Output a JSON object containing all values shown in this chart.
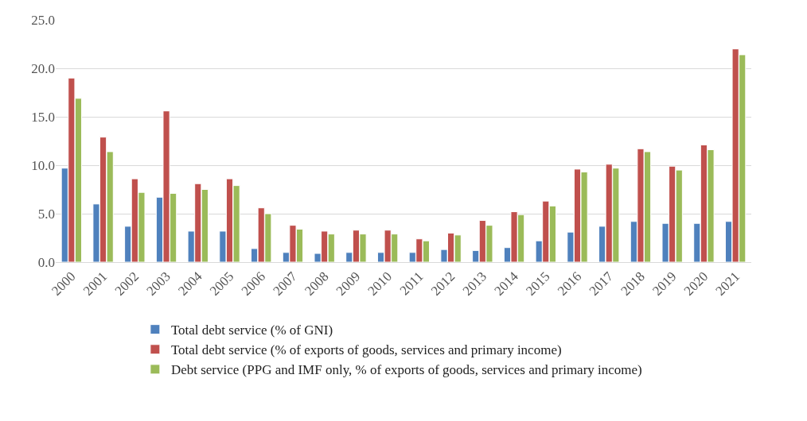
{
  "chart_data": {
    "type": "bar",
    "categories": [
      "2000",
      "2001",
      "2002",
      "2003",
      "2004",
      "2005",
      "2006",
      "2007",
      "2008",
      "2009",
      "2010",
      "2011",
      "2012",
      "2013",
      "2014",
      "2015",
      "2016",
      "2017",
      "2018",
      "2019",
      "2020",
      "2021"
    ],
    "series": [
      {
        "name": "Total debt service (% of GNI)",
        "color": "#4f81bd",
        "values": [
          9.7,
          6.0,
          3.7,
          6.7,
          3.2,
          3.2,
          1.4,
          1.0,
          0.9,
          1.0,
          1.0,
          1.0,
          1.3,
          1.2,
          1.5,
          2.2,
          3.1,
          3.7,
          4.2,
          4.0,
          4.0,
          4.2
        ]
      },
      {
        "name": "Total debt service (% of exports of goods, services and primary income)",
        "color": "#c0504d",
        "values": [
          19.0,
          12.9,
          8.6,
          15.6,
          8.1,
          8.6,
          5.6,
          3.8,
          3.2,
          3.3,
          3.3,
          2.4,
          3.0,
          4.3,
          5.2,
          6.3,
          9.6,
          10.1,
          11.7,
          9.9,
          12.1,
          22.0
        ]
      },
      {
        "name": "Debt service (PPG and IMF only, % of exports of goods, services and primary income)",
        "color": "#9bbb59",
        "values": [
          16.9,
          11.4,
          7.2,
          7.1,
          7.5,
          7.9,
          5.0,
          3.4,
          2.9,
          2.9,
          2.9,
          2.2,
          2.8,
          3.8,
          4.9,
          5.8,
          9.3,
          9.7,
          11.4,
          9.5,
          11.6,
          21.4
        ]
      }
    ],
    "ylim": [
      0,
      25
    ],
    "yticks": [
      {
        "value": 0,
        "label": "0.0"
      },
      {
        "value": 5,
        "label": "5.0"
      },
      {
        "value": 10,
        "label": "10.0"
      },
      {
        "value": 15,
        "label": "15.0"
      },
      {
        "value": 20,
        "label": "20.0"
      },
      {
        "value": 25,
        "label": "25.0"
      }
    ],
    "grid": "y",
    "legend": "bottom"
  }
}
